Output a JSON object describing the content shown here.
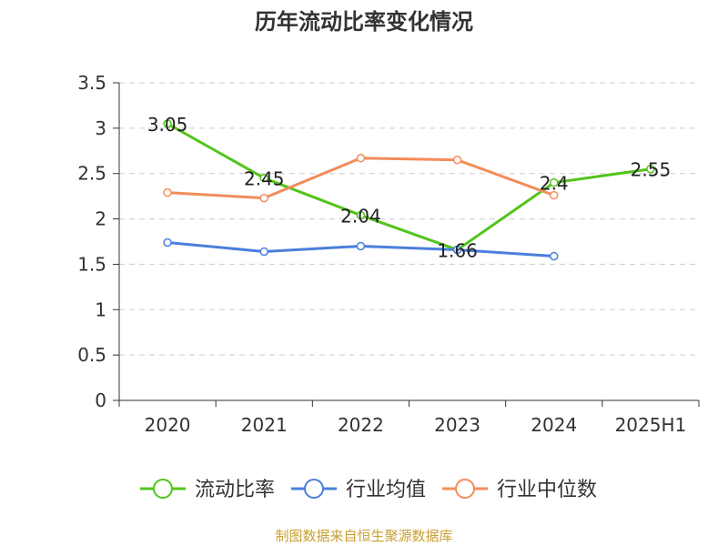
{
  "chart_data": {
    "type": "line",
    "title": "历年流动比率变化情况",
    "categories": [
      "2020",
      "2021",
      "2022",
      "2023",
      "2024",
      "2025H1"
    ],
    "y_ticks": [
      "0",
      "0.5",
      "1",
      "1.5",
      "2",
      "2.5",
      "3",
      "3.5"
    ],
    "ylim": [
      0,
      3.5
    ],
    "grid": true,
    "legend_position": "bottom",
    "series": [
      {
        "name": "流动比率",
        "color": "#52c41a",
        "values": [
          3.05,
          2.45,
          2.04,
          1.66,
          2.4,
          2.55
        ],
        "labels": [
          "3.05",
          "2.45",
          "2.04",
          "1.66",
          "2.4",
          "2.55"
        ]
      },
      {
        "name": "行业均值",
        "color": "#4a7fdb",
        "values": [
          1.74,
          1.64,
          1.7,
          1.66,
          1.59,
          null
        ]
      },
      {
        "name": "行业中位数",
        "color": "#f28c5a",
        "values": [
          2.29,
          2.23,
          2.67,
          2.65,
          2.26,
          null
        ]
      }
    ]
  },
  "footer": {
    "source": "制图数据来自恒生聚源数据库"
  }
}
